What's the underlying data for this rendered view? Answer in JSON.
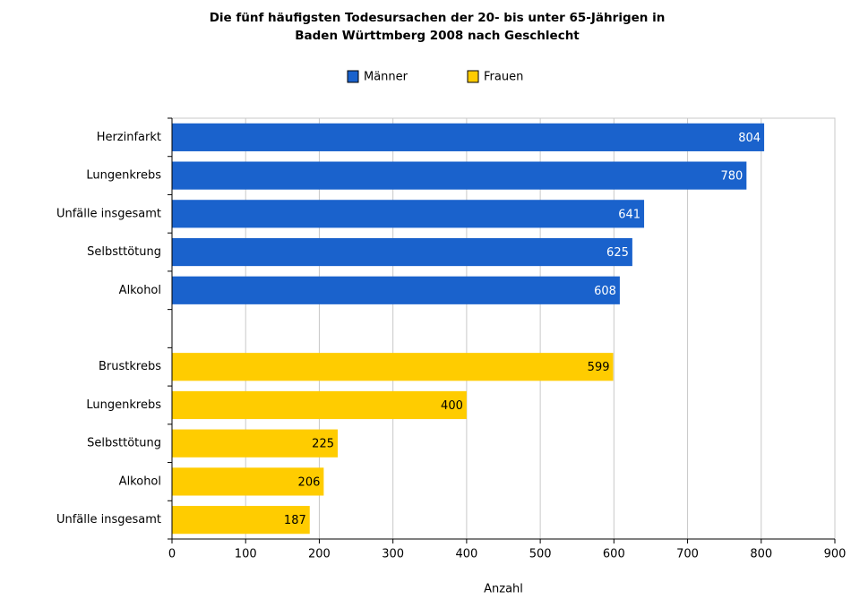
{
  "chart_data": {
    "type": "barh",
    "title": [
      "Die fünf häufigsten Todesursachen der 20- bis unter 65-Jährigen in",
      "Baden Württmberg 2008 nach Geschlecht"
    ],
    "categories": [
      "Herzinfarkt",
      "Lungenkrebs",
      "Unfälle insgesamt",
      "Selbsttötung",
      "Alkohol",
      null,
      "Brustkrebs",
      "Lungenkrebs",
      "Selbsttötung",
      "Alkohol",
      "Unfälle insgesamt"
    ],
    "series": [
      {
        "name": "Männer",
        "color": "#1a62cc",
        "label_color": "#ffffff",
        "values": [
          804,
          780,
          641,
          625,
          608,
          null,
          null,
          null,
          null,
          null,
          null
        ]
      },
      {
        "name": "Frauen",
        "color": "#ffcc00",
        "label_color": "#000000",
        "values": [
          null,
          null,
          null,
          null,
          null,
          null,
          599,
          400,
          225,
          206,
          187
        ]
      }
    ],
    "xlim": [
      0,
      900
    ],
    "xticks": [
      0,
      100,
      200,
      300,
      400,
      500,
      600,
      700,
      800,
      900
    ],
    "xlabel": "Anzahl",
    "grid": true
  }
}
